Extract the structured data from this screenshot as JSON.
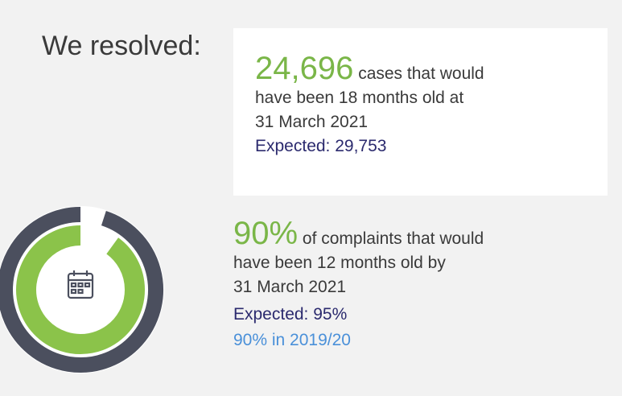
{
  "title": "We resolved:",
  "cases": {
    "value": "24,696",
    "lines": [
      "cases that would",
      "have been 18 months old at",
      "31 March 2021"
    ],
    "expected": "Expected: 29,753"
  },
  "complaints": {
    "value": "90%",
    "lines": [
      "of complaints that would",
      "have been 12 months old by",
      "31 March 2021"
    ],
    "expected": "Expected: 95%",
    "previous": "90% in 2019/20"
  },
  "donut": {
    "actual": 90,
    "expected": 95,
    "max": 100,
    "actual_color": "#8bc34a",
    "expected_color": "#4b4f5e"
  }
}
